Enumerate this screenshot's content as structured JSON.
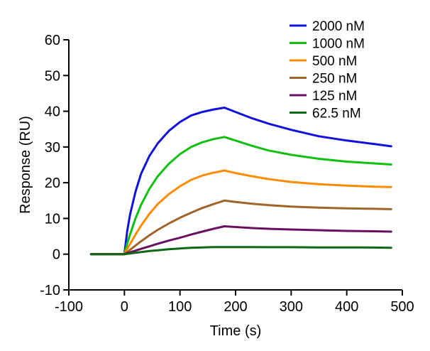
{
  "chart_data": {
    "type": "line",
    "title": "",
    "xlabel": "Time (s)",
    "ylabel": "Response  (RU)",
    "xlim": [
      -100,
      500
    ],
    "ylim": [
      -10,
      60
    ],
    "x_ticks": [
      -100,
      0,
      100,
      200,
      300,
      400,
      500
    ],
    "y_ticks": [
      -10,
      0,
      10,
      20,
      30,
      40,
      50,
      60
    ],
    "x_tick_labels": [
      "-100",
      "0",
      "100",
      "200",
      "300",
      "400",
      "500"
    ],
    "y_tick_labels": [
      "-10",
      "0",
      "10",
      "20",
      "30",
      "40",
      "50",
      "60"
    ],
    "grid": false,
    "legend_position": "top-right",
    "x": [
      -60,
      -30,
      0,
      5,
      10,
      20,
      30,
      45,
      60,
      80,
      100,
      120,
      140,
      160,
      180,
      200,
      230,
      260,
      300,
      350,
      400,
      450,
      480
    ],
    "series": [
      {
        "name": "2000 nM",
        "color": "#1010e0",
        "values": [
          0,
          0,
          0,
          6.5,
          11.0,
          17.5,
          22.5,
          27.5,
          31.0,
          34.5,
          37.0,
          38.8,
          39.8,
          40.5,
          41.0,
          39.8,
          38.0,
          36.5,
          34.8,
          33.0,
          31.8,
          30.8,
          30.2
        ]
      },
      {
        "name": "1000 nM",
        "color": "#10c010",
        "values": [
          0,
          0,
          0,
          3.0,
          5.5,
          10.0,
          13.8,
          18.3,
          21.8,
          25.3,
          28.0,
          30.0,
          31.3,
          32.2,
          32.8,
          31.8,
          30.3,
          29.0,
          27.8,
          26.7,
          25.9,
          25.4,
          25.1
        ]
      },
      {
        "name": "500 nM",
        "color": "#ff8c00",
        "values": [
          0,
          0,
          0,
          1.5,
          2.8,
          5.5,
          8.0,
          11.3,
          14.0,
          16.8,
          19.0,
          20.8,
          22.0,
          22.8,
          23.4,
          22.7,
          21.8,
          21.0,
          20.2,
          19.6,
          19.2,
          18.9,
          18.8
        ]
      },
      {
        "name": "250 nM",
        "color": "#a0642a",
        "values": [
          0,
          0,
          0,
          0.6,
          1.2,
          2.4,
          3.6,
          5.3,
          6.8,
          8.6,
          10.2,
          11.6,
          12.9,
          14.0,
          15.0,
          14.6,
          14.1,
          13.7,
          13.3,
          13.0,
          12.8,
          12.7,
          12.6
        ]
      },
      {
        "name": "125 nM",
        "color": "#6a1060",
        "values": [
          0,
          0,
          0,
          0.3,
          0.5,
          1.0,
          1.5,
          2.2,
          2.9,
          3.8,
          4.6,
          5.5,
          6.3,
          7.1,
          7.8,
          7.6,
          7.3,
          7.1,
          6.9,
          6.7,
          6.5,
          6.4,
          6.3
        ]
      },
      {
        "name": "62.5 nM",
        "color": "#0a6a14",
        "values": [
          0,
          0,
          0,
          0.1,
          0.2,
          0.4,
          0.6,
          0.9,
          1.1,
          1.4,
          1.6,
          1.8,
          1.9,
          2.0,
          2.0,
          2.0,
          2.0,
          1.95,
          1.95,
          1.9,
          1.9,
          1.85,
          1.8
        ]
      }
    ]
  }
}
